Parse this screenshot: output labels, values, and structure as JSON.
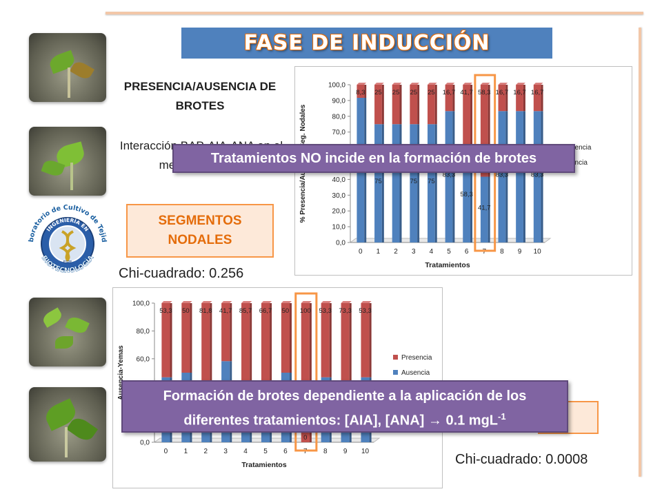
{
  "slide": {
    "title": "FASE DE INDUCCIÓN",
    "heading": "PRESENCIA/AUSENCIA DE BROTES",
    "interaction_text": "Interacción BAP-AIA-ANA en el medio de cultivo",
    "segment_label": "SEGMENTOS NODALES",
    "chi_square_1": "Chi-cuadrado: 0.256",
    "chi_square_2": "Chi-cuadrado: 0.0008",
    "banner_1": "Tratamientos NO incide en la formación de brotes",
    "banner_2_line1": "Formación de brotes dependiente a la aplicación de los",
    "banner_2_line2": "diferentes tratamientos: [AIA], [ANA] ",
    "banner_2_arrow": "→",
    "banner_2_value": " 0.1 mgL",
    "banner_2_exp": "-1"
  },
  "logo": {
    "top_text": "Laboratorio de Cultivo de Tejidos",
    "ring_text": "INGENIERÍA EN",
    "bottom_text": "BIOTECNOLOGÍA",
    "small_text": "ESPE"
  },
  "colors": {
    "presence": "#c0504d",
    "absence": "#4f81bd",
    "accent": "#f79646",
    "banner": "#8064a2"
  },
  "chart_data": [
    {
      "type": "bar",
      "stacked": true,
      "xlabel": "Tratamientos",
      "ylabel": "% Presencia/Ausencia Seg. Nodales",
      "categories": [
        "0",
        "1",
        "2",
        "3",
        "4",
        "5",
        "6",
        "7",
        "8",
        "9",
        "10"
      ],
      "ylim": [
        0,
        100
      ],
      "ytick_labels": [
        "0,0",
        "10,0",
        "20,0",
        "30,0",
        "40,0",
        "50,0",
        "60,0",
        "70,0",
        "80,0",
        "90,0",
        "100,0"
      ],
      "highlight_category": "7",
      "legend": [
        "Presencia",
        "Ausencia"
      ],
      "legend_visible": [
        "esencia",
        "sencia"
      ],
      "series": [
        {
          "name": "Ausencia",
          "values": [
            91.7,
            75,
            75,
            75,
            75,
            83.3,
            58.3,
            41.7,
            83.3,
            83.3,
            83.3
          ],
          "labels": [
            "",
            "75",
            "",
            "75",
            "75",
            "83,3",
            "58,3",
            "41,7",
            "83,3",
            "",
            "83,3"
          ]
        },
        {
          "name": "Presencia",
          "values": [
            8.3,
            25,
            25,
            25,
            25,
            16.7,
            41.7,
            58.3,
            16.7,
            16.7,
            16.7
          ],
          "labels": [
            "8,3",
            "25",
            "25",
            "25",
            "25",
            "16,7",
            "41,7",
            "58,3",
            "16,7",
            "16,7",
            "16,7"
          ]
        }
      ]
    },
    {
      "type": "bar",
      "stacked": true,
      "xlabel": "Tratamientos",
      "ylabel": "Ausencia-Yemas",
      "categories": [
        "0",
        "1",
        "2",
        "3",
        "4",
        "5",
        "6",
        "7",
        "8",
        "9",
        "10"
      ],
      "ylim": [
        0,
        100
      ],
      "ytick_labels": [
        "0,0",
        "20,0",
        "40,0",
        "60,0",
        "80,0",
        "100,0"
      ],
      "highlight_category": "7",
      "legend": [
        "Presencia",
        "Ausencia"
      ],
      "series": [
        {
          "name": "Ausencia",
          "values": [
            46.7,
            50,
            18.2,
            58.3,
            14.3,
            33.3,
            50,
            0,
            46.7,
            26.7,
            46.7
          ],
          "labels": [
            "",
            "",
            "",
            "",
            "",
            "",
            "",
            "0",
            "",
            "",
            ""
          ]
        },
        {
          "name": "Presencia",
          "values": [
            53.3,
            50,
            81.8,
            41.7,
            85.7,
            66.7,
            50,
            100,
            53.3,
            73.3,
            53.3
          ],
          "labels": [
            "53,3",
            "50",
            "81,8",
            "41,7",
            "85,7",
            "66,7",
            "50",
            "100",
            "53,3",
            "73,3",
            "53,3"
          ]
        }
      ]
    }
  ]
}
